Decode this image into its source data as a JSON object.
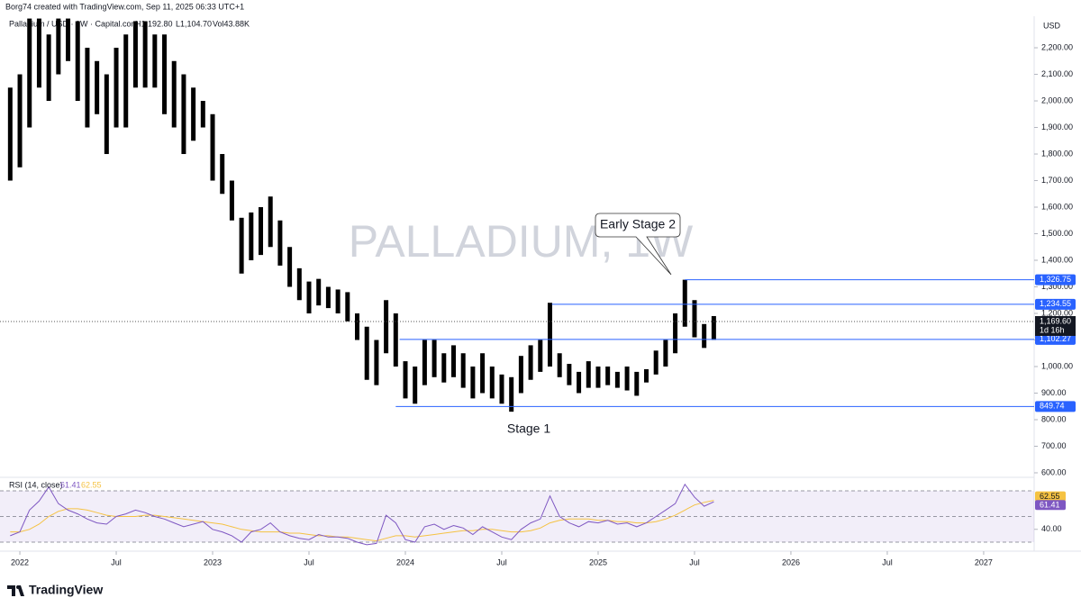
{
  "header": {
    "credit": "Borg74 created with TradingView.com, Sep 11, 2025 06:33 UTC+1",
    "symbol": "Palladium / USD · 1W · Capital.com",
    "high": "H1,192.80",
    "low": "L1,104.70",
    "volume": "Vol43.88K",
    "logo": "TradingView"
  },
  "chart_data": [
    {
      "type": "range",
      "color": "#000000",
      "unit": "USD",
      "watermark": "PALLADIUM, 1W",
      "x": [
        2021.95,
        2022.0,
        2022.05,
        2022.1,
        2022.15,
        2022.2,
        2022.25,
        2022.3,
        2022.35,
        2022.4,
        2022.45,
        2022.5,
        2022.55,
        2022.6,
        2022.65,
        2022.7,
        2022.75,
        2022.8,
        2022.85,
        2022.9,
        2022.95,
        2023.0,
        2023.05,
        2023.1,
        2023.15,
        2023.2,
        2023.25,
        2023.3,
        2023.35,
        2023.4,
        2023.45,
        2023.5,
        2023.55,
        2023.6,
        2023.65,
        2023.7,
        2023.75,
        2023.8,
        2023.85,
        2023.9,
        2023.95,
        2024.0,
        2024.05,
        2024.1,
        2024.15,
        2024.2,
        2024.25,
        2024.3,
        2024.35,
        2024.4,
        2024.45,
        2024.5,
        2024.55,
        2024.6,
        2024.65,
        2024.7,
        2024.75,
        2024.8,
        2024.85,
        2024.9,
        2024.95,
        2025.0,
        2025.05,
        2025.1,
        2025.15,
        2025.2,
        2025.25,
        2025.3,
        2025.35,
        2025.4,
        2025.45,
        2025.5,
        2025.55,
        2025.6
      ],
      "high": [
        2050,
        2100,
        2310,
        2310,
        2250,
        2310,
        2310,
        2300,
        2200,
        2150,
        2100,
        2200,
        2250,
        2300,
        2300,
        2250,
        2250,
        2150,
        2100,
        2050,
        2000,
        1950,
        1800,
        1700,
        1560,
        1580,
        1600,
        1640,
        1550,
        1450,
        1370,
        1320,
        1330,
        1300,
        1290,
        1280,
        1200,
        1150,
        1100,
        1250,
        1200,
        1020,
        1000,
        1100,
        1100,
        1050,
        1080,
        1050,
        1000,
        1050,
        1000,
        970,
        960,
        1040,
        1080,
        1100,
        1240,
        1050,
        1010,
        980,
        1020,
        1000,
        1000,
        980,
        1000,
        980,
        990,
        1060,
        1100,
        1200,
        1326.75,
        1250,
        1160,
        1190
      ],
      "low": [
        1700,
        1750,
        1900,
        2050,
        2000,
        2100,
        2150,
        2000,
        1900,
        1950,
        1800,
        1900,
        1900,
        2050,
        2050,
        2050,
        1950,
        1900,
        1800,
        1850,
        1900,
        1700,
        1650,
        1550,
        1350,
        1400,
        1420,
        1450,
        1380,
        1300,
        1250,
        1200,
        1230,
        1220,
        1200,
        1170,
        1100,
        950,
        930,
        1050,
        1000,
        880,
        860,
        930,
        960,
        940,
        960,
        920,
        880,
        900,
        880,
        860,
        830,
        900,
        950,
        980,
        1000,
        960,
        930,
        900,
        920,
        920,
        930,
        920,
        910,
        890,
        940,
        970,
        1000,
        1050,
        1150,
        1110,
        1070,
        1100
      ],
      "xlim": [
        2021.897,
        2027.262
      ],
      "ylim": [
        583,
        2312
      ],
      "xticks": [
        2022,
        {
          "value": 2022.5,
          "label": "Jul"
        },
        2023,
        {
          "value": 2023.5,
          "label": "Jul"
        },
        2024,
        {
          "value": 2024.5,
          "label": "Jul"
        },
        2025,
        {
          "value": 2025.5,
          "label": "Jul"
        },
        2026,
        {
          "value": 2026.5,
          "label": "Jul"
        },
        2027
      ],
      "yticks": [
        {
          "value": 600,
          "label": "600.00"
        },
        {
          "value": 700,
          "label": "700.00"
        },
        {
          "value": 800,
          "label": "800.00"
        },
        {
          "value": 900,
          "label": "900.00"
        },
        {
          "value": 1000,
          "label": "1,000.00"
        },
        {
          "value": 1100,
          "label": "1,100.00"
        },
        {
          "value": 1200,
          "label": "1,200.00"
        },
        {
          "value": 1300,
          "label": "1,300.00"
        },
        {
          "value": 1400,
          "label": "1,400.00"
        },
        {
          "value": 1500,
          "label": "1,500.00"
        },
        {
          "value": 1600,
          "label": "1,600.00"
        },
        {
          "value": 1700,
          "label": "1,700.00"
        },
        {
          "value": 1800,
          "label": "1,800.00"
        },
        {
          "value": 1900,
          "label": "1,900.00"
        },
        {
          "value": 2000,
          "label": "2,000.00"
        },
        {
          "value": 2100,
          "label": "2,100.00"
        },
        {
          "value": 2200,
          "label": "2,200.00"
        }
      ],
      "levels": [
        {
          "value": 1326.75,
          "label": "1,326.75",
          "start": 2025.45
        },
        {
          "value": 1234.55,
          "label": "1,234.55",
          "start": 2024.76
        },
        {
          "value": 1102.27,
          "label": "1,102.27",
          "start": 2023.97
        },
        {
          "value": 849.74,
          "label": "849.74",
          "start": 2023.95
        }
      ],
      "level_color": "#2962ff",
      "last": {
        "value": 1169.6,
        "label": "1,169.60",
        "countdown": "1d 16h"
      },
      "annotations": [
        "Early Stage 2",
        "Stage 1"
      ]
    },
    {
      "type": "line",
      "ylim": [
        24.4,
        80.5
      ],
      "yticks": [
        {
          "value": 40,
          "label": "40.00"
        }
      ],
      "bands": [
        70,
        50,
        30
      ],
      "series": [
        {
          "name": "RSI (14, close)",
          "color": "#7e57c2",
          "values": [
            35,
            38,
            55,
            62,
            73,
            60,
            55,
            52,
            48,
            45,
            44,
            50,
            52,
            55,
            53,
            50,
            48,
            45,
            42,
            44,
            46,
            40,
            38,
            35,
            30,
            38,
            40,
            45,
            38,
            35,
            33,
            32,
            36,
            34,
            34,
            33,
            30,
            28,
            29,
            51,
            45,
            32,
            30,
            42,
            44,
            40,
            43,
            41,
            36,
            42,
            38,
            34,
            32,
            40,
            45,
            48,
            66,
            50,
            45,
            42,
            46,
            45,
            47,
            44,
            45,
            42,
            45,
            50,
            55,
            60,
            75,
            65,
            58,
            61.41
          ]
        },
        {
          "color": "#f5c242",
          "values": [
            38,
            38,
            40,
            44,
            50,
            54,
            56,
            56,
            55,
            53,
            51,
            50,
            50,
            50,
            51,
            51,
            50,
            49,
            48,
            47,
            46,
            45,
            44,
            42,
            40,
            39,
            38,
            38,
            38,
            37,
            37,
            36,
            35,
            35,
            34,
            34,
            33,
            32,
            31,
            33,
            35,
            35,
            34,
            35,
            36,
            37,
            38,
            39,
            39,
            40,
            40,
            39,
            38,
            38,
            39,
            41,
            45,
            47,
            48,
            48,
            48,
            47,
            47,
            46,
            46,
            45,
            45,
            46,
            48,
            51,
            55,
            59,
            61,
            62.55
          ]
        }
      ]
    }
  ]
}
